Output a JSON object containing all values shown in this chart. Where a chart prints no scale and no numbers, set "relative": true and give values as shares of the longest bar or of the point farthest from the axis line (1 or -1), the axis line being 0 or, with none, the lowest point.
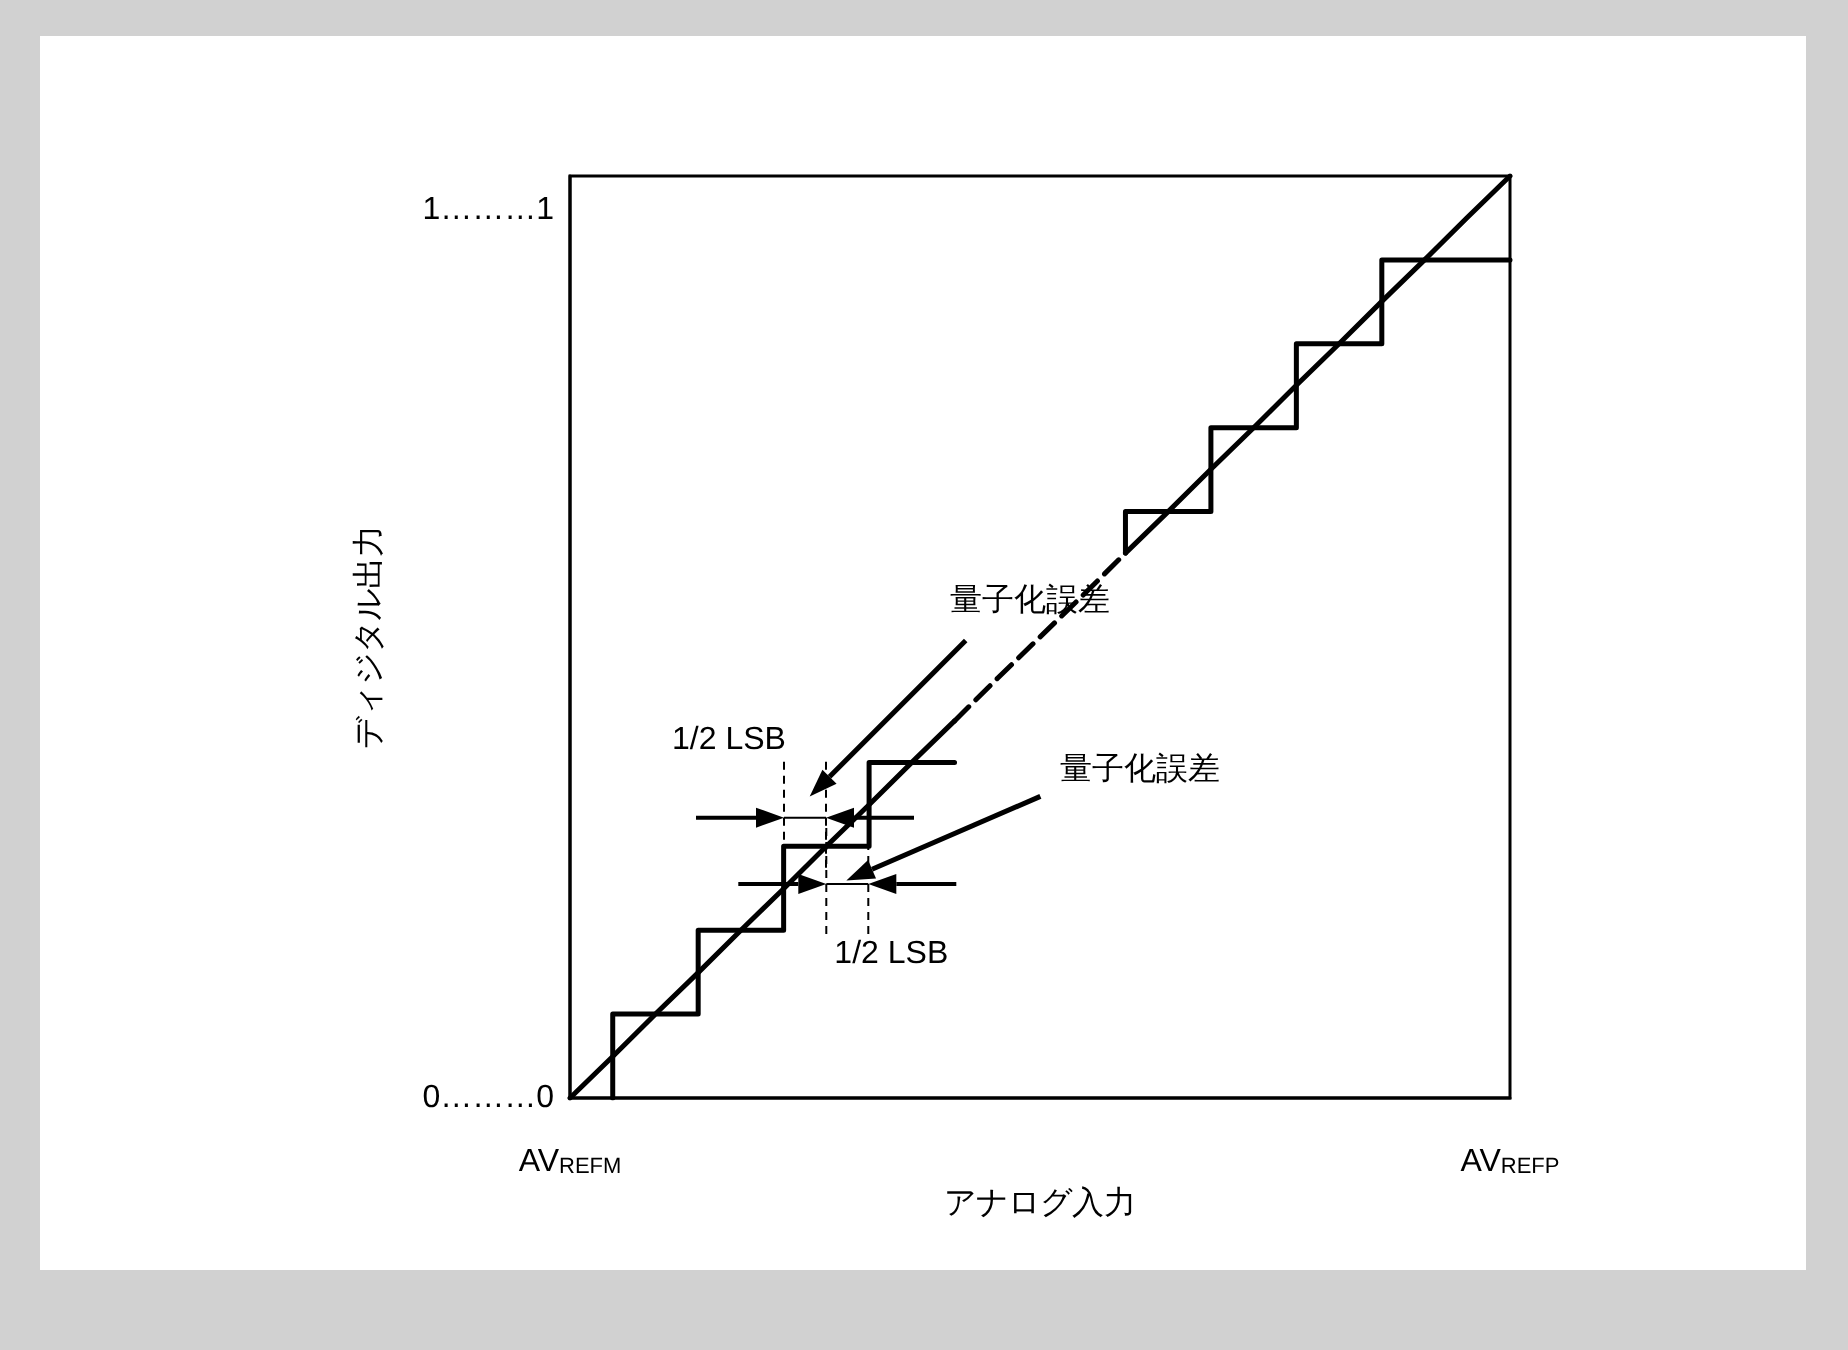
{
  "chart_data": {
    "type": "line",
    "relative": true,
    "xlabel": "アナログ入力",
    "ylabel": "ディジタル出力",
    "grid": false,
    "marker": "none",
    "categories": [
      "AV$_{REFM}$",
      null,
      null,
      null,
      null,
      null,
      null,
      null,
      null,
      null,
      null,
      null,
      null,
      null,
      null,
      null,
      null,
      null,
      null,
      null,
      null,
      null,
      "AV$_{REFP}$"
    ],
    "series": [
      {
        "type": "step",
        "color": "#000000",
        "values": [
          null,
          0,
          0.091,
          0.091,
          0.182,
          0.182,
          0.273,
          0.273,
          0.364,
          0.364,
          null,
          null,
          null,
          null,
          null,
          null,
          null,
          null,
          null,
          null,
          null,
          null,
          null
        ]
      },
      {
        "type": "step",
        "color": "#000000",
        "values": [
          null,
          null,
          null,
          null,
          null,
          null,
          null,
          null,
          null,
          null,
          null,
          null,
          null,
          0.591,
          0.636,
          0.636,
          0.727,
          0.727,
          0.818,
          0.818,
          0.909,
          0.909,
          0.909
        ]
      },
      {
        "color": "#000000",
        "values": [
          0,
          0.045,
          0.091,
          0.136,
          0.182,
          0.227,
          0.273,
          0.318,
          0.364,
          0.409,
          null,
          null,
          null,
          null,
          null,
          null,
          null,
          null,
          null,
          null,
          null,
          null,
          null
        ]
      },
      {
        "color": "#000000",
        "line_style": "dashed",
        "values": [
          null,
          null,
          null,
          null,
          null,
          null,
          null,
          null,
          null,
          0.409,
          0.455,
          0.5,
          0.545,
          0.591,
          null,
          null,
          null,
          null,
          null,
          null,
          null,
          null,
          null
        ]
      },
      {
        "color": "#000000",
        "values": [
          null,
          null,
          null,
          null,
          null,
          null,
          null,
          null,
          null,
          null,
          null,
          null,
          null,
          0.591,
          0.636,
          0.682,
          0.727,
          0.773,
          0.818,
          0.864,
          0.909,
          0.955,
          1
        ]
      }
    ],
    "annotations": [
      "量子化誤差",
      "量子化誤差",
      "1/2 LSB",
      "1/2 LSB",
      "0………0",
      "1………1"
    ]
  }
}
